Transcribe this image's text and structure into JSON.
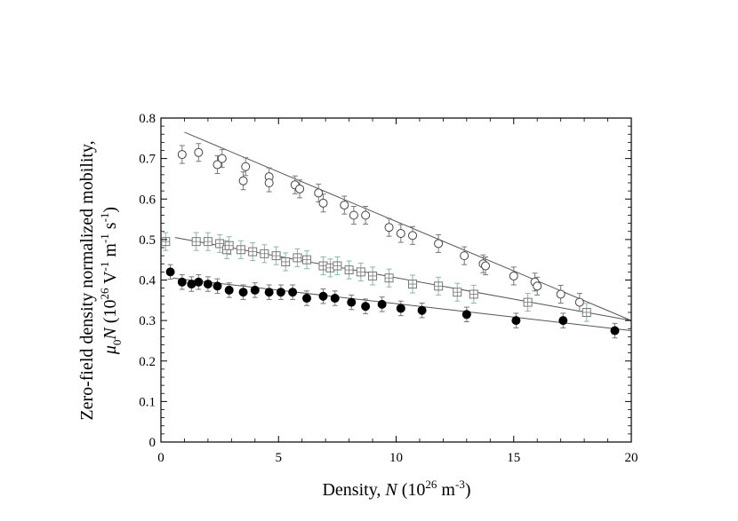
{
  "chart_data": {
    "type": "scatter",
    "title": "",
    "xlabel": {
      "prefix": "Density, ",
      "var": "N",
      "unit_open": " (10",
      "unit_exp": "26",
      "unit_mid": " m",
      "unit_exp2": "-3",
      "unit_close": ")"
    },
    "ylabel": {
      "line1": "Zero-field density normalized mobility,",
      "mu": "μ",
      "mu_sub": "0",
      "var": "N",
      "unit_open": " (10",
      "e1": "26",
      "v": " V",
      "e2": "-1",
      "m": " m",
      "e3": "-1",
      "s": " s",
      "e4": "-1",
      "close": ")"
    },
    "xlim": [
      0,
      20
    ],
    "ylim": [
      0,
      0.8
    ],
    "xticks": [
      0,
      5,
      10,
      15,
      20
    ],
    "yticks": [
      0,
      0.1,
      0.2,
      0.3,
      0.4,
      0.5,
      0.6,
      0.7,
      0.8
    ],
    "xtick_labels": [
      "0",
      "5",
      "10",
      "15",
      "20"
    ],
    "ytick_labels": [
      "0",
      "0.1",
      "0.2",
      "0.3",
      "0.4",
      "0.5",
      "0.6",
      "0.7",
      "0.8"
    ],
    "grid": false,
    "series": [
      {
        "marker": "open-circle",
        "color": "#444444",
        "errbar_color": "#777777",
        "x": [
          0.9,
          1.6,
          2.4,
          2.6,
          3.5,
          3.6,
          4.6,
          4.6,
          5.7,
          5.9,
          6.7,
          6.9,
          7.8,
          8.2,
          8.7,
          9.7,
          10.2,
          10.7,
          11.8,
          12.9,
          13.7,
          13.8,
          15.0,
          15.9,
          16.0,
          17.0,
          17.8
        ],
        "y": [
          0.71,
          0.715,
          0.685,
          0.7,
          0.645,
          0.68,
          0.655,
          0.64,
          0.635,
          0.625,
          0.615,
          0.59,
          0.585,
          0.56,
          0.56,
          0.53,
          0.515,
          0.51,
          0.49,
          0.46,
          0.44,
          0.435,
          0.41,
          0.395,
          0.385,
          0.365,
          0.345
        ],
        "err": 0.022
      },
      {
        "marker": "open-square",
        "color": "#777777",
        "errbar_color": "#8bb8a8",
        "x": [
          0.2,
          1.5,
          2.0,
          2.5,
          2.8,
          2.9,
          3.4,
          3.9,
          4.4,
          4.9,
          5.3,
          5.8,
          6.2,
          6.9,
          7.2,
          7.5,
          8.0,
          8.5,
          9.0,
          9.7,
          10.7,
          11.8,
          12.6,
          13.3,
          15.6,
          18.1
        ],
        "y": [
          0.495,
          0.495,
          0.495,
          0.49,
          0.475,
          0.485,
          0.475,
          0.47,
          0.465,
          0.46,
          0.445,
          0.455,
          0.45,
          0.435,
          0.43,
          0.435,
          0.425,
          0.42,
          0.41,
          0.405,
          0.39,
          0.385,
          0.37,
          0.365,
          0.345,
          0.32
        ],
        "err": 0.022
      },
      {
        "marker": "filled-circle",
        "color": "#000000",
        "errbar_color": "#777777",
        "x": [
          0.4,
          0.9,
          1.3,
          1.6,
          2.0,
          2.4,
          2.9,
          3.5,
          4.0,
          4.6,
          5.1,
          5.6,
          6.2,
          6.9,
          7.4,
          8.1,
          8.7,
          9.4,
          10.2,
          11.1,
          13.0,
          15.1,
          17.1,
          19.3
        ],
        "y": [
          0.42,
          0.395,
          0.39,
          0.395,
          0.39,
          0.385,
          0.375,
          0.37,
          0.375,
          0.37,
          0.37,
          0.37,
          0.355,
          0.36,
          0.355,
          0.345,
          0.335,
          0.34,
          0.33,
          0.325,
          0.315,
          0.3,
          0.3,
          0.275
        ],
        "err": 0.018
      }
    ],
    "fits": [
      {
        "x": [
          1.0,
          20.0
        ],
        "y": [
          0.765,
          0.3
        ],
        "color": "#555555"
      },
      {
        "x": [
          0.6,
          20.0
        ],
        "y": [
          0.505,
          0.3
        ],
        "color": "#555555"
      },
      {
        "x": [
          0.5,
          20.0
        ],
        "y": [
          0.405,
          0.275
        ],
        "color": "#555555"
      }
    ]
  }
}
